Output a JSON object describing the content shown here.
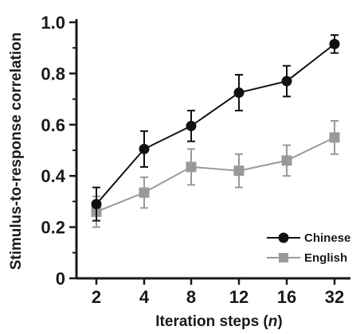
{
  "chart_data": {
    "type": "line",
    "title": "",
    "xlabel": "Iteration steps (n)",
    "xlabel_main": "Iteration steps (",
    "xlabel_var": "n",
    "xlabel_close": ")",
    "ylabel": "Stimulus-to-response correlation",
    "x": [
      "2",
      "4",
      "8",
      "12",
      "16",
      "32"
    ],
    "ylim": [
      0,
      1.0
    ],
    "yticks": [
      "0",
      "0.2",
      "0.4",
      "0.6",
      "0.8",
      "1.0"
    ],
    "grid": false,
    "legend_position": "bottom-right",
    "series": [
      {
        "name": "Chinese",
        "color": "#111111",
        "marker": "circle",
        "values": [
          0.29,
          0.505,
          0.595,
          0.725,
          0.77,
          0.915
        ],
        "errors": [
          0.065,
          0.07,
          0.06,
          0.07,
          0.06,
          0.035
        ]
      },
      {
        "name": "English",
        "color": "#999999",
        "marker": "square",
        "values": [
          0.26,
          0.335,
          0.435,
          0.42,
          0.46,
          0.55
        ],
        "errors": [
          0.06,
          0.06,
          0.07,
          0.065,
          0.06,
          0.065
        ]
      }
    ]
  }
}
